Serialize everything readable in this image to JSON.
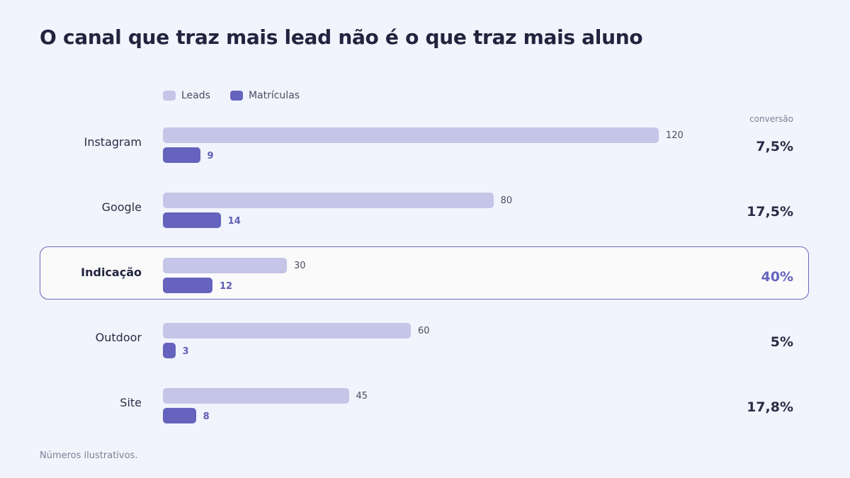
{
  "title": "O canal que traz mais lead não é o que traz mais aluno",
  "note": "Números ilustrativos.",
  "colors": {
    "leads": "#c5c5e8",
    "matriculas": "#6563be",
    "highlight": "#6b68b8"
  },
  "chart_data": {
    "type": "bar",
    "orientation": "horizontal",
    "title": "O canal que traz mais lead não é o que traz mais aluno",
    "categories": [
      "Instagram",
      "Google",
      "Indicação",
      "Outdoor",
      "Site"
    ],
    "series": [
      {
        "name": "Leads",
        "values": [
          120,
          80,
          30,
          60,
          45
        ]
      },
      {
        "name": "Matrículas",
        "values": [
          9,
          14,
          12,
          3,
          8
        ]
      }
    ],
    "conversion_header": "conversão",
    "conversion": [
      "7,5%",
      "17,5%",
      "40%",
      "5%",
      "17,8%"
    ],
    "highlighted_category": "Indicação",
    "legend_position": "top-left",
    "grid": false,
    "xlim": [
      0,
      120
    ]
  }
}
